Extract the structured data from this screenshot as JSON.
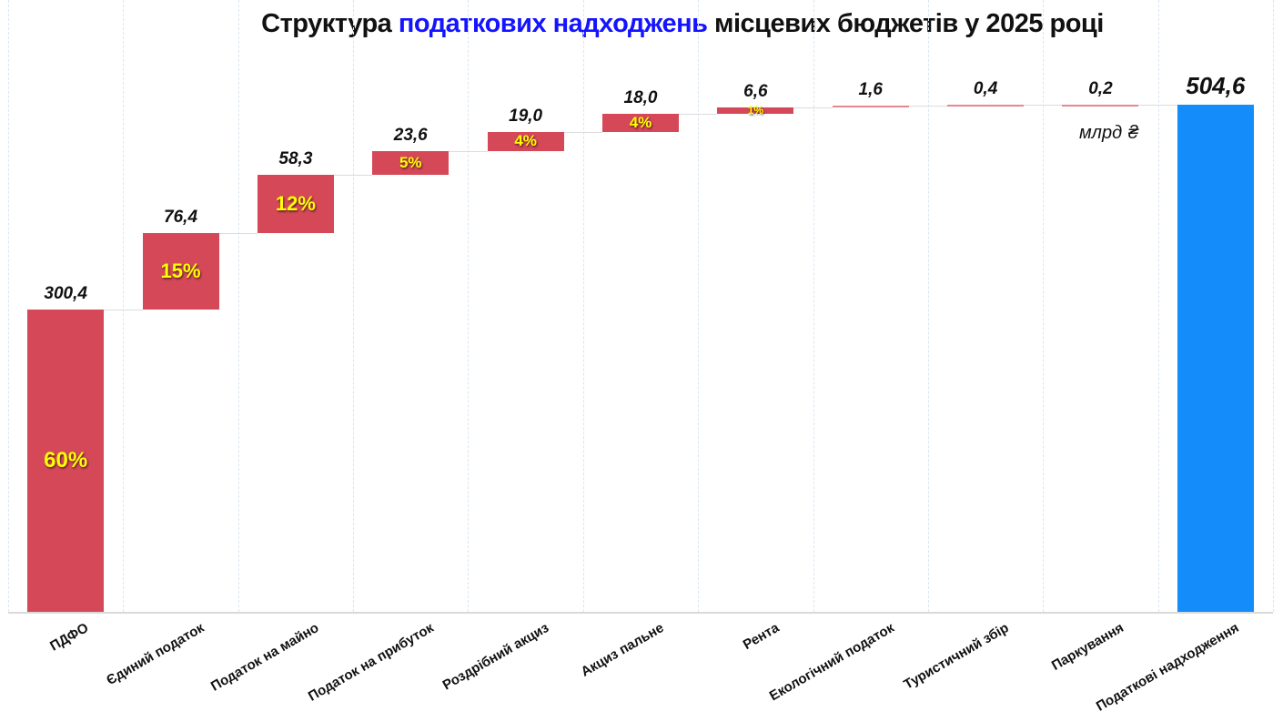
{
  "title": {
    "part1": "Структура ",
    "highlight": "податкових надходжень",
    "part2": " місцевих бюджетів у 2025 році"
  },
  "unit_label": "млрд ₴",
  "chart_data": {
    "type": "bar",
    "subtype": "waterfall",
    "title": "Структура податкових надходжень місцевих бюджетів у 2025 році",
    "unit": "млрд ₴",
    "categories": [
      "ПДФО",
      "Єдиний податок",
      "Податок на майно",
      "Податок на прибуток",
      "Роздрібний акциз",
      "Акциз пальне",
      "Рента",
      "Екологічний податок",
      "Туристичний збір",
      "Паркування",
      "Податкові надходження"
    ],
    "values": [
      300.4,
      76.4,
      58.3,
      23.6,
      19.0,
      18.0,
      6.6,
      1.6,
      0.4,
      0.2,
      504.6
    ],
    "value_labels": [
      "300,4",
      "76,4",
      "58,3",
      "23,6",
      "19,0",
      "18,0",
      "6,6",
      "1,6",
      "0,4",
      "0,2",
      "504,6"
    ],
    "percent_labels": [
      "60%",
      "15%",
      "12%",
      "5%",
      "4%",
      "4%",
      "1%",
      "",
      "",
      "",
      ""
    ],
    "bar_roles": [
      "item",
      "item",
      "item",
      "item",
      "item",
      "item",
      "item",
      "item",
      "item",
      "item",
      "total"
    ],
    "total": 504.6,
    "ylim": [
      0,
      560
    ],
    "grid": "vertical-light-dashed",
    "legend": "none",
    "colors": {
      "item_bar": "#d54858",
      "total_bar": "#148cfa",
      "percent_text": "#ffff00",
      "value_text": "#111111",
      "connector": "#dcdcdc",
      "gridline": "#d9e6f2",
      "baseline": "#d9d9d9",
      "title_highlight": "#1414ff"
    }
  }
}
